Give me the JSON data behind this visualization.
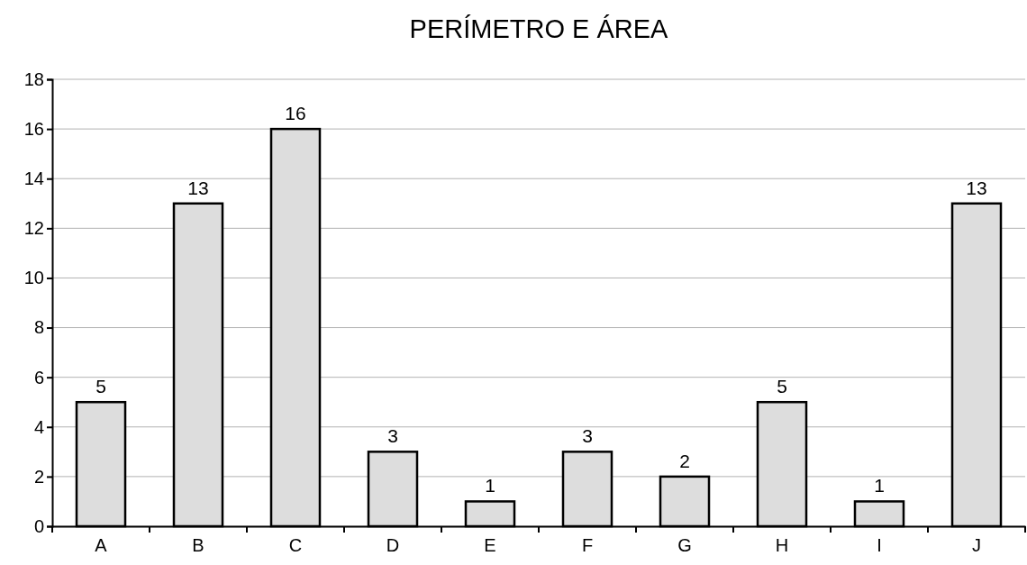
{
  "chart_data": {
    "type": "bar",
    "title": "PERÍMETRO E ÁREA",
    "categories": [
      "A",
      "B",
      "C",
      "D",
      "E",
      "F",
      "G",
      "H",
      "I",
      "J"
    ],
    "values": [
      5,
      13,
      16,
      3,
      1,
      3,
      2,
      5,
      1,
      13
    ],
    "color": "#dddddd",
    "ylim": [
      0,
      18
    ],
    "yticks": [
      0,
      2,
      4,
      6,
      8,
      10,
      12,
      14,
      16,
      18
    ],
    "grid": "y",
    "data_labels": true
  }
}
